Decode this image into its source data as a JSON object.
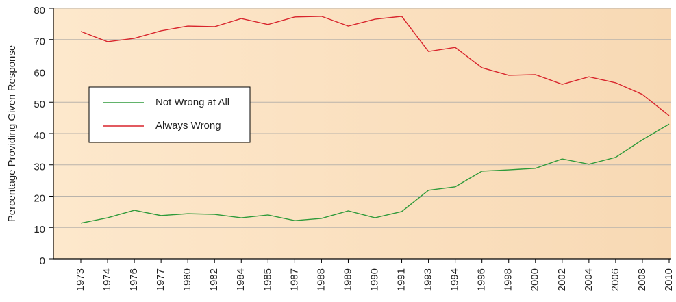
{
  "chart_data": {
    "type": "line",
    "y_label": "Percentage Providing Given Response",
    "categories": [
      "1973",
      "1974",
      "1976",
      "1977",
      "1980",
      "1982",
      "1984",
      "1985",
      "1987",
      "1988",
      "1989",
      "1990",
      "1991",
      "1993",
      "1994",
      "1996",
      "1998",
      "2000",
      "2002",
      "2004",
      "2006",
      "2008",
      "2010"
    ],
    "series": [
      {
        "name": "Not Wrong at All",
        "color": "#2e9a3a",
        "values": [
          11.4,
          13.1,
          15.5,
          13.8,
          14.4,
          14.2,
          13.1,
          14.0,
          12.2,
          12.9,
          15.3,
          13.1,
          15.1,
          21.9,
          23.0,
          28.0,
          28.4,
          28.9,
          31.9,
          30.2,
          32.4,
          38.0,
          43.0
        ]
      },
      {
        "name": "Always Wrong",
        "color": "#d8242c",
        "values": [
          72.6,
          69.3,
          70.4,
          72.8,
          74.3,
          74.1,
          76.7,
          74.8,
          77.2,
          77.4,
          74.3,
          76.5,
          77.4,
          66.2,
          67.5,
          61.0,
          58.6,
          58.8,
          55.7,
          58.1,
          56.2,
          52.5,
          45.7
        ]
      }
    ],
    "ylim": [
      0,
      80
    ],
    "yticks": [
      0,
      10,
      20,
      30,
      40,
      50,
      60,
      70,
      80
    ],
    "grid": true
  }
}
